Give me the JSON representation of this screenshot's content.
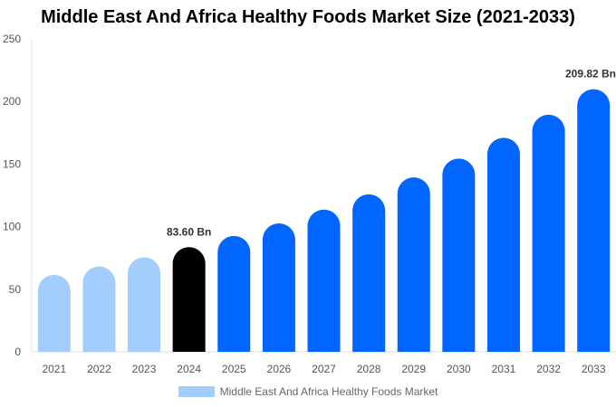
{
  "chart_data": {
    "type": "bar",
    "title": "Middle East And Africa Healthy Foods Market Size (2021-2033)",
    "categories": [
      "2021",
      "2022",
      "2023",
      "2024",
      "2025",
      "2026",
      "2027",
      "2028",
      "2029",
      "2030",
      "2031",
      "2032",
      "2033"
    ],
    "series": [
      {
        "name": "Middle East And Africa Healthy Foods Market",
        "values": [
          61.5,
          68.2,
          75.5,
          83.6,
          92.6,
          102.6,
          113.6,
          125.8,
          139.4,
          154.4,
          171.0,
          189.4,
          209.82
        ]
      }
    ],
    "data_labels": {
      "2024": "83.60 Bn",
      "2033": "209.82 Bn"
    },
    "ylim": [
      0,
      250
    ],
    "yticks": [
      0,
      50,
      100,
      150,
      200,
      250
    ],
    "grid": false,
    "legend_position": "bottom",
    "colors": {
      "historical": "#a3cdfd",
      "base_year": "#000000",
      "forecast": "#0066ff"
    }
  }
}
